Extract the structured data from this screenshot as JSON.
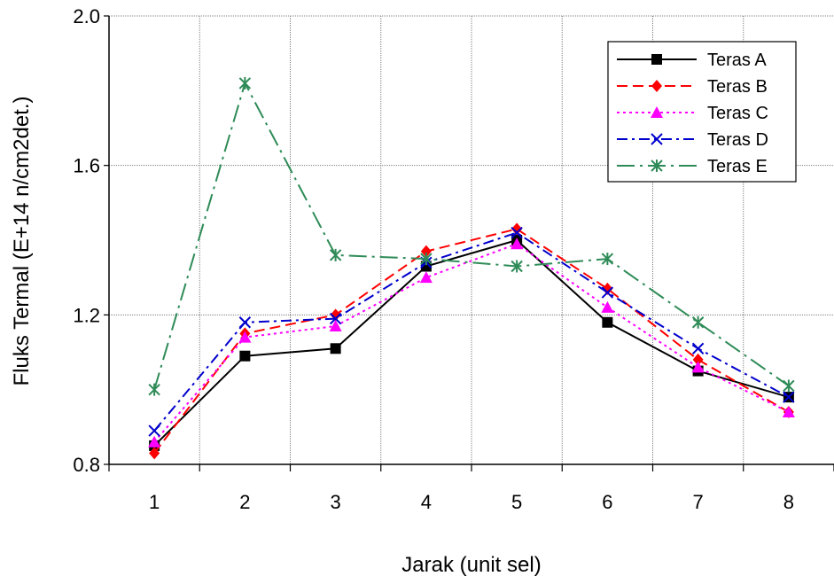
{
  "chart_data": {
    "type": "line",
    "title": "",
    "xlabel": "Jarak (unit sel)",
    "ylabel": "Fluks Termal (E+14 n/cm2det.)",
    "x": [
      1,
      2,
      3,
      4,
      5,
      6,
      7,
      8
    ],
    "xlim": [
      0.5,
      8.5
    ],
    "ylim": [
      0.8,
      2.0
    ],
    "yticks": [
      "0.8",
      "1.2",
      "1.6",
      "2.0"
    ],
    "grid": true,
    "legend_position": "top-right",
    "series": [
      {
        "name": "Teras A",
        "color": "#000000",
        "dash": "solid",
        "marker": "square",
        "values": [
          0.85,
          1.09,
          1.11,
          1.33,
          1.4,
          1.18,
          1.05,
          0.98
        ]
      },
      {
        "name": "Teras B",
        "color": "#ff0000",
        "dash": "dash",
        "marker": "diamond",
        "values": [
          0.83,
          1.15,
          1.2,
          1.37,
          1.43,
          1.27,
          1.08,
          0.94
        ]
      },
      {
        "name": "Teras C",
        "color": "#ff00ff",
        "dash": "dot",
        "marker": "triangle",
        "values": [
          0.86,
          1.14,
          1.17,
          1.3,
          1.39,
          1.22,
          1.06,
          0.94
        ]
      },
      {
        "name": "Teras D",
        "color": "#0000cc",
        "dash": "dashdot",
        "marker": "x",
        "values": [
          0.89,
          1.18,
          1.19,
          1.34,
          1.42,
          1.26,
          1.11,
          0.98
        ]
      },
      {
        "name": "Teras E",
        "color": "#2e8b57",
        "dash": "longdashdot",
        "marker": "asterisk",
        "values": [
          1.0,
          1.82,
          1.36,
          1.35,
          1.33,
          1.35,
          1.18,
          1.01
        ]
      }
    ]
  }
}
